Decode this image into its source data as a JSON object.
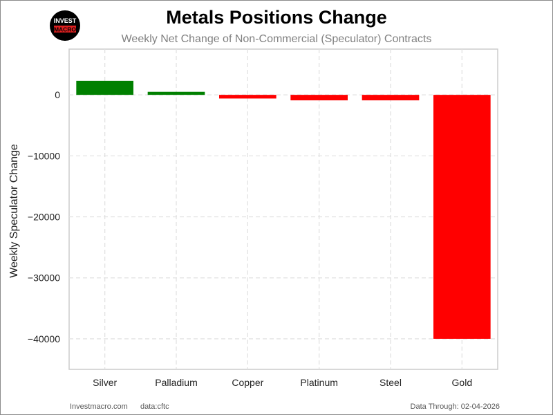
{
  "header": {
    "title": "Metals Positions Change",
    "subtitle": "Weekly Net Change of Non-Commercial (Speculator) Contracts"
  },
  "logo": {
    "line1": "INVEST",
    "line2": "MACRO"
  },
  "footer": {
    "site": "Investmacro.com",
    "data_source": "data:cftc",
    "data_through": "Data Through: 02-04-2026"
  },
  "colors": {
    "positive": "#008000",
    "negative": "#ff0000",
    "grid": "#e0e0e0",
    "axes": "#cccccc"
  },
  "chart_data": {
    "type": "bar",
    "title": "Metals Positions Change",
    "subtitle": "Weekly Net Change of Non-Commercial (Speculator) Contracts",
    "xlabel": "",
    "ylabel": "Weekly Speculator Change",
    "categories": [
      "Silver",
      "Palladium",
      "Copper",
      "Platinum",
      "Steel",
      "Gold"
    ],
    "values": [
      2300,
      500,
      -600,
      -900,
      -900,
      -40000
    ],
    "ylim": [
      -45000,
      7500
    ],
    "yticks": [
      0,
      -10000,
      -20000,
      -30000,
      -40000
    ],
    "ytick_labels": [
      "0",
      "−10000",
      "−20000",
      "−30000",
      "−40000"
    ],
    "grid": true,
    "legend": "none"
  }
}
